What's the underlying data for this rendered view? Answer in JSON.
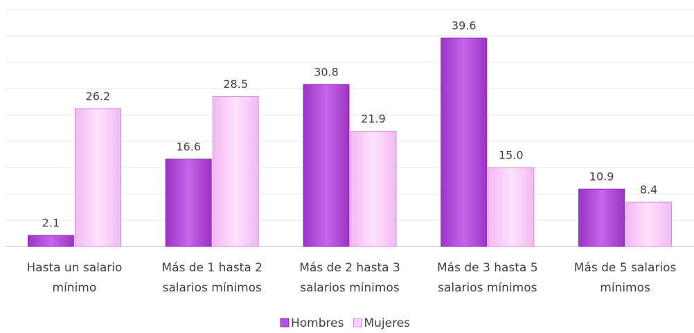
{
  "chart_data": {
    "type": "bar",
    "categories": [
      [
        "Hasta un salario",
        "mínimo"
      ],
      [
        "Más de 1 hasta 2",
        "salarios mínimos"
      ],
      [
        "Más de 2 hasta 3",
        "salarios mínimos"
      ],
      [
        "Más de 3 hasta 5",
        "salarios mínimos"
      ],
      [
        "Más de 5 salarios",
        "mínimos"
      ]
    ],
    "series": [
      {
        "name": "Hombres",
        "color": "#b750dc",
        "values": [
          2.1,
          16.6,
          30.8,
          39.6,
          10.9
        ],
        "value_labels": [
          "2.1",
          "16.6",
          "30.8",
          "39.6",
          "10.9"
        ]
      },
      {
        "name": "Mujeres",
        "color": "#fbcffb",
        "values": [
          26.2,
          28.5,
          21.9,
          15,
          8.4
        ],
        "value_labels": [
          "26.2",
          "28.5",
          "21.9",
          "15.0",
          "8.4"
        ]
      }
    ],
    "ylim": [
      0,
      45
    ],
    "yticks": [
      0,
      5,
      10,
      15,
      20,
      25,
      30,
      35,
      40,
      45
    ],
    "grid": true,
    "legend": "bottom"
  }
}
